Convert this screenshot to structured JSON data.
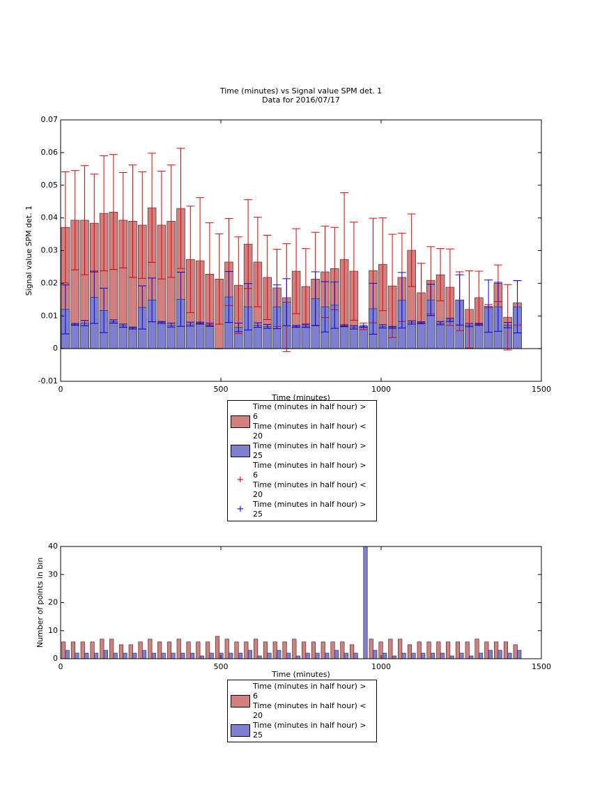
{
  "chart_data": [
    {
      "type": "bar",
      "title": "Time (minutes) vs Signal value SPM det. 1",
      "subtitle": "Data for 2016/07/17",
      "x_label": "Time (minutes)",
      "y_label": "Signal value SPM det. 1",
      "x": [
        15,
        45,
        75,
        105,
        135,
        165,
        195,
        225,
        255,
        285,
        315,
        345,
        375,
        405,
        435,
        465,
        495,
        525,
        555,
        585,
        615,
        645,
        675,
        705,
        735,
        765,
        795,
        825,
        855,
        885,
        915,
        945,
        975,
        1005,
        1035,
        1065,
        1095,
        1125,
        1155,
        1185,
        1215,
        1245,
        1275,
        1305,
        1335,
        1365,
        1395,
        1425
      ],
      "xlim": [
        0,
        1500
      ],
      "xticks": [
        0,
        500,
        1000,
        1500
      ],
      "ylim": [
        -0.01,
        0.07
      ],
      "yticks": [
        -0.01,
        0,
        0.01,
        0.02,
        0.03,
        0.04,
        0.05,
        0.06,
        0.07
      ],
      "series": [
        {
          "name": "Time (minutes in half hour) > 6\nTime (minutes in half hour) < 20",
          "error_name": "Time (minutes in half hour) > 6\nTime (minutes in half hour) < 20",
          "color": "#d17f7f",
          "error_color": "#e00000",
          "values": [
            0.0371,
            0.0393,
            0.0393,
            0.0384,
            0.0414,
            0.0418,
            0.0393,
            0.039,
            0.0378,
            0.0431,
            0.0378,
            0.039,
            0.0429,
            0.0273,
            0.0269,
            0.0228,
            0.0213,
            0.0265,
            0.0194,
            0.032,
            0.0265,
            0.0218,
            0.0186,
            0.0156,
            0.0237,
            0.019,
            0.0213,
            0.0235,
            0.0245,
            0.0273,
            0.0237,
            0.0068,
            0.0239,
            0.0258,
            0.0192,
            0.0218,
            0.0301,
            0.0171,
            0.0209,
            0.0226,
            0.0188,
            0.0145,
            0.012,
            0.0156,
            0.013,
            0.02,
            0.0096,
            0.014
          ],
          "errors": [
            0.017,
            0.0152,
            0.0167,
            0.015,
            0.0176,
            0.0176,
            0.0146,
            0.0172,
            0.0163,
            0.0167,
            0.0165,
            0.0172,
            0.0184,
            0.0163,
            0.0193,
            0.0157,
            0.0138,
            0.0133,
            0.0148,
            0.0136,
            0.0137,
            0.0129,
            0.0118,
            0.0165,
            0.013,
            0.0116,
            0.0143,
            0.014,
            0.0126,
            0.0204,
            0.015,
            0.001,
            0.016,
            0.0142,
            0.0158,
            0.0135,
            0.0111,
            0.009,
            0.0103,
            0.008,
            0.0117,
            0.009,
            0.0118,
            0.0081,
            0.0005,
            0.0056,
            0.01,
            0.0068
          ]
        },
        {
          "name": "Time (minutes in half hour) > 25",
          "error_name": "Time (minutes in half hour) > 25",
          "color": "#7f7fd1",
          "error_color": "#0000e0",
          "values": [
            0.012,
            0.0074,
            0.0078,
            0.0157,
            0.0117,
            0.0083,
            0.007,
            0.0063,
            0.0126,
            0.0149,
            0.008,
            0.0072,
            0.0151,
            0.0075,
            0.0078,
            0.0073,
            0,
            0.0158,
            0.0065,
            0.0128,
            0.0072,
            0.0068,
            0.0128,
            0.0142,
            0.0068,
            0.007,
            0.0153,
            0.0128,
            0.0133,
            0.007,
            0.0065,
            0.0068,
            0.0122,
            0.0068,
            0.0065,
            0.0148,
            0.008,
            0.0079,
            0.0149,
            0.0078,
            0.0088,
            0.0149,
            0.0072,
            0.0074,
            0.013,
            0.0128,
            0.0072,
            0.0128
          ],
          "errors": [
            0.0075,
            0.0003,
            0.0008,
            0.008,
            0.0068,
            0.0005,
            0.0005,
            0.0003,
            0.0066,
            0.0067,
            0.0003,
            0.0006,
            0.0083,
            0.0006,
            0.0003,
            0.0005,
            0,
            0.0078,
            0.0013,
            0.0071,
            0.0007,
            0.0006,
            0.0067,
            0.0072,
            0.0003,
            0.0005,
            0.0082,
            0.0077,
            0.0071,
            0.0003,
            0.0005,
            0.0003,
            0.0078,
            0.0005,
            0.0003,
            0.0085,
            0.0005,
            0.0003,
            0.0048,
            0.0005,
            0.0005,
            0.0077,
            0.0005,
            0.0003,
            0.008,
            0.0075,
            0.0008,
            0.008
          ]
        }
      ]
    },
    {
      "type": "bar",
      "x_label": "Time (minutes)",
      "y_label": "Number of points in bin",
      "x": [
        15,
        45,
        75,
        105,
        135,
        165,
        195,
        225,
        255,
        285,
        315,
        345,
        375,
        405,
        435,
        465,
        495,
        525,
        555,
        585,
        615,
        645,
        675,
        705,
        735,
        765,
        795,
        825,
        855,
        885,
        915,
        945,
        975,
        1005,
        1035,
        1065,
        1095,
        1125,
        1155,
        1185,
        1215,
        1245,
        1275,
        1305,
        1335,
        1365,
        1395,
        1425
      ],
      "xlim": [
        0,
        1500
      ],
      "xticks": [
        0,
        500,
        1000,
        1500
      ],
      "ylim": [
        0,
        40
      ],
      "yticks": [
        0,
        10,
        20,
        30,
        40
      ],
      "series": [
        {
          "name": "Time (minutes in half hour) > 6\nTime (minutes in half hour) < 20",
          "color": "#d17f7f",
          "values": [
            6,
            6,
            6,
            6,
            7,
            7,
            5,
            5,
            6,
            7,
            6,
            6,
            7,
            6,
            6,
            6,
            8,
            7,
            6,
            6,
            7,
            6,
            6,
            6,
            7,
            6,
            6,
            6,
            6,
            6,
            5,
            0,
            7,
            6,
            7,
            7,
            5,
            6,
            6,
            6,
            6,
            6,
            6,
            7,
            6,
            6,
            6,
            5
          ]
        },
        {
          "name": "Time (minutes in half hour) > 25",
          "color": "#7f7fd1",
          "values": [
            3,
            2,
            2,
            2,
            3,
            2,
            2,
            2,
            3,
            2,
            2,
            2,
            2,
            2,
            1,
            2,
            2,
            2,
            2,
            3,
            1,
            2,
            3,
            2,
            1,
            2,
            2,
            2,
            3,
            2,
            2,
            40,
            3,
            2,
            1,
            2,
            2,
            2,
            2,
            2,
            1,
            2,
            1,
            2,
            3,
            3,
            2,
            3
          ]
        }
      ]
    }
  ]
}
